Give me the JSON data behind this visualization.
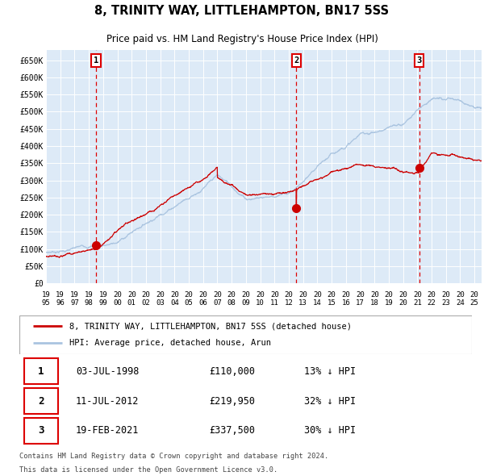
{
  "title": "8, TRINITY WAY, LITTLEHAMPTON, BN17 5SS",
  "subtitle": "Price paid vs. HM Land Registry's House Price Index (HPI)",
  "footer_line1": "Contains HM Land Registry data © Crown copyright and database right 2024.",
  "footer_line2": "This data is licensed under the Open Government Licence v3.0.",
  "legend_red": "8, TRINITY WAY, LITTLEHAMPTON, BN17 5SS (detached house)",
  "legend_blue": "HPI: Average price, detached house, Arun",
  "transactions": [
    {
      "num": 1,
      "date": "03-JUL-1998",
      "price": "£110,000",
      "pct": "13% ↓ HPI",
      "year": 1998.5,
      "price_val": 110000
    },
    {
      "num": 2,
      "date": "11-JUL-2012",
      "price": "£219,950",
      "pct": "32% ↓ HPI",
      "year": 2012.53,
      "price_val": 219950
    },
    {
      "num": 3,
      "date": "19-FEB-2021",
      "price": "£337,500",
      "pct": "30% ↓ HPI",
      "year": 2021.13,
      "price_val": 337500
    }
  ],
  "hpi_color": "#aac4e0",
  "price_color": "#cc0000",
  "background_color": "#ffffff",
  "plot_bg_color": "#ddeaf7",
  "grid_color": "#ffffff",
  "vline_color": "#dd0000",
  "marker_color": "#cc0000",
  "ylim": [
    0,
    680000
  ],
  "xlim_start": 1995.0,
  "xlim_end": 2025.5,
  "yticks": [
    0,
    50000,
    100000,
    150000,
    200000,
    250000,
    300000,
    350000,
    400000,
    450000,
    500000,
    550000,
    600000,
    650000
  ],
  "ytick_labels": [
    "£0",
    "£50K",
    "£100K",
    "£150K",
    "£200K",
    "£250K",
    "£300K",
    "£350K",
    "£400K",
    "£450K",
    "£500K",
    "£550K",
    "£600K",
    "£650K"
  ],
  "xticks": [
    1995,
    1996,
    1997,
    1998,
    1999,
    2000,
    2001,
    2002,
    2003,
    2004,
    2005,
    2006,
    2007,
    2008,
    2009,
    2010,
    2011,
    2012,
    2013,
    2014,
    2015,
    2016,
    2017,
    2018,
    2019,
    2020,
    2021,
    2022,
    2023,
    2024,
    2025
  ]
}
